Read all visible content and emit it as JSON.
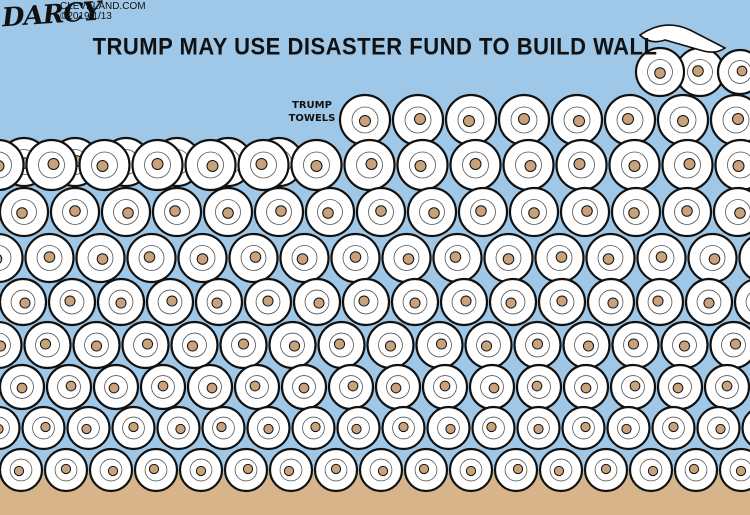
{
  "cartoon": {
    "headline": "TRUMP MAY USE DISASTER FUND TO BUILD WALL",
    "signature": "DARCY",
    "site_line1": "CLEVELAND.COM",
    "site_line2": "©2019 1/13",
    "roll_label_line1": "TRUMP",
    "roll_label_line2": "TOWELS"
  },
  "colors": {
    "sky": "#9fc8e8",
    "ground": "#d8b48b",
    "roll_fill": "#ffffff",
    "roll_core": "#c9a27c",
    "outline": "#111111"
  },
  "icons": {
    "wall": "paper-towel-roll-wall",
    "roll": "paper-towel-roll-end"
  }
}
